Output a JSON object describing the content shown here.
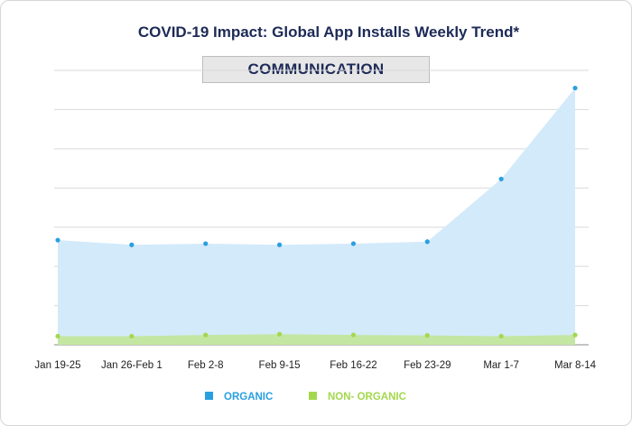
{
  "chart_data": {
    "type": "area",
    "title": "COVID-19 Impact: Global App Installs Weekly Trend*",
    "subtitle": "COMMUNICATION",
    "categories": [
      "Jan 19-25",
      "Jan 26-Feb 1",
      "Feb 2-8",
      "Feb 9-15",
      "Feb 16-22",
      "Feb 23-29",
      "Mar 1-7",
      "Mar 8-14"
    ],
    "ylim": [
      0,
      7
    ],
    "yticks_shown": false,
    "grid": true,
    "legend_position": "bottom",
    "series": [
      {
        "name": "ORGANIC",
        "color": "#2a9fe0",
        "fill": "#d3eafa",
        "values": [
          2.67,
          2.55,
          2.58,
          2.55,
          2.58,
          2.63,
          4.23,
          6.55
        ]
      },
      {
        "name": "NON- ORGANIC",
        "color": "#a3d84d",
        "fill": "#c4e6a3",
        "values": [
          0.22,
          0.22,
          0.25,
          0.27,
          0.25,
          0.24,
          0.22,
          0.25
        ]
      }
    ]
  }
}
